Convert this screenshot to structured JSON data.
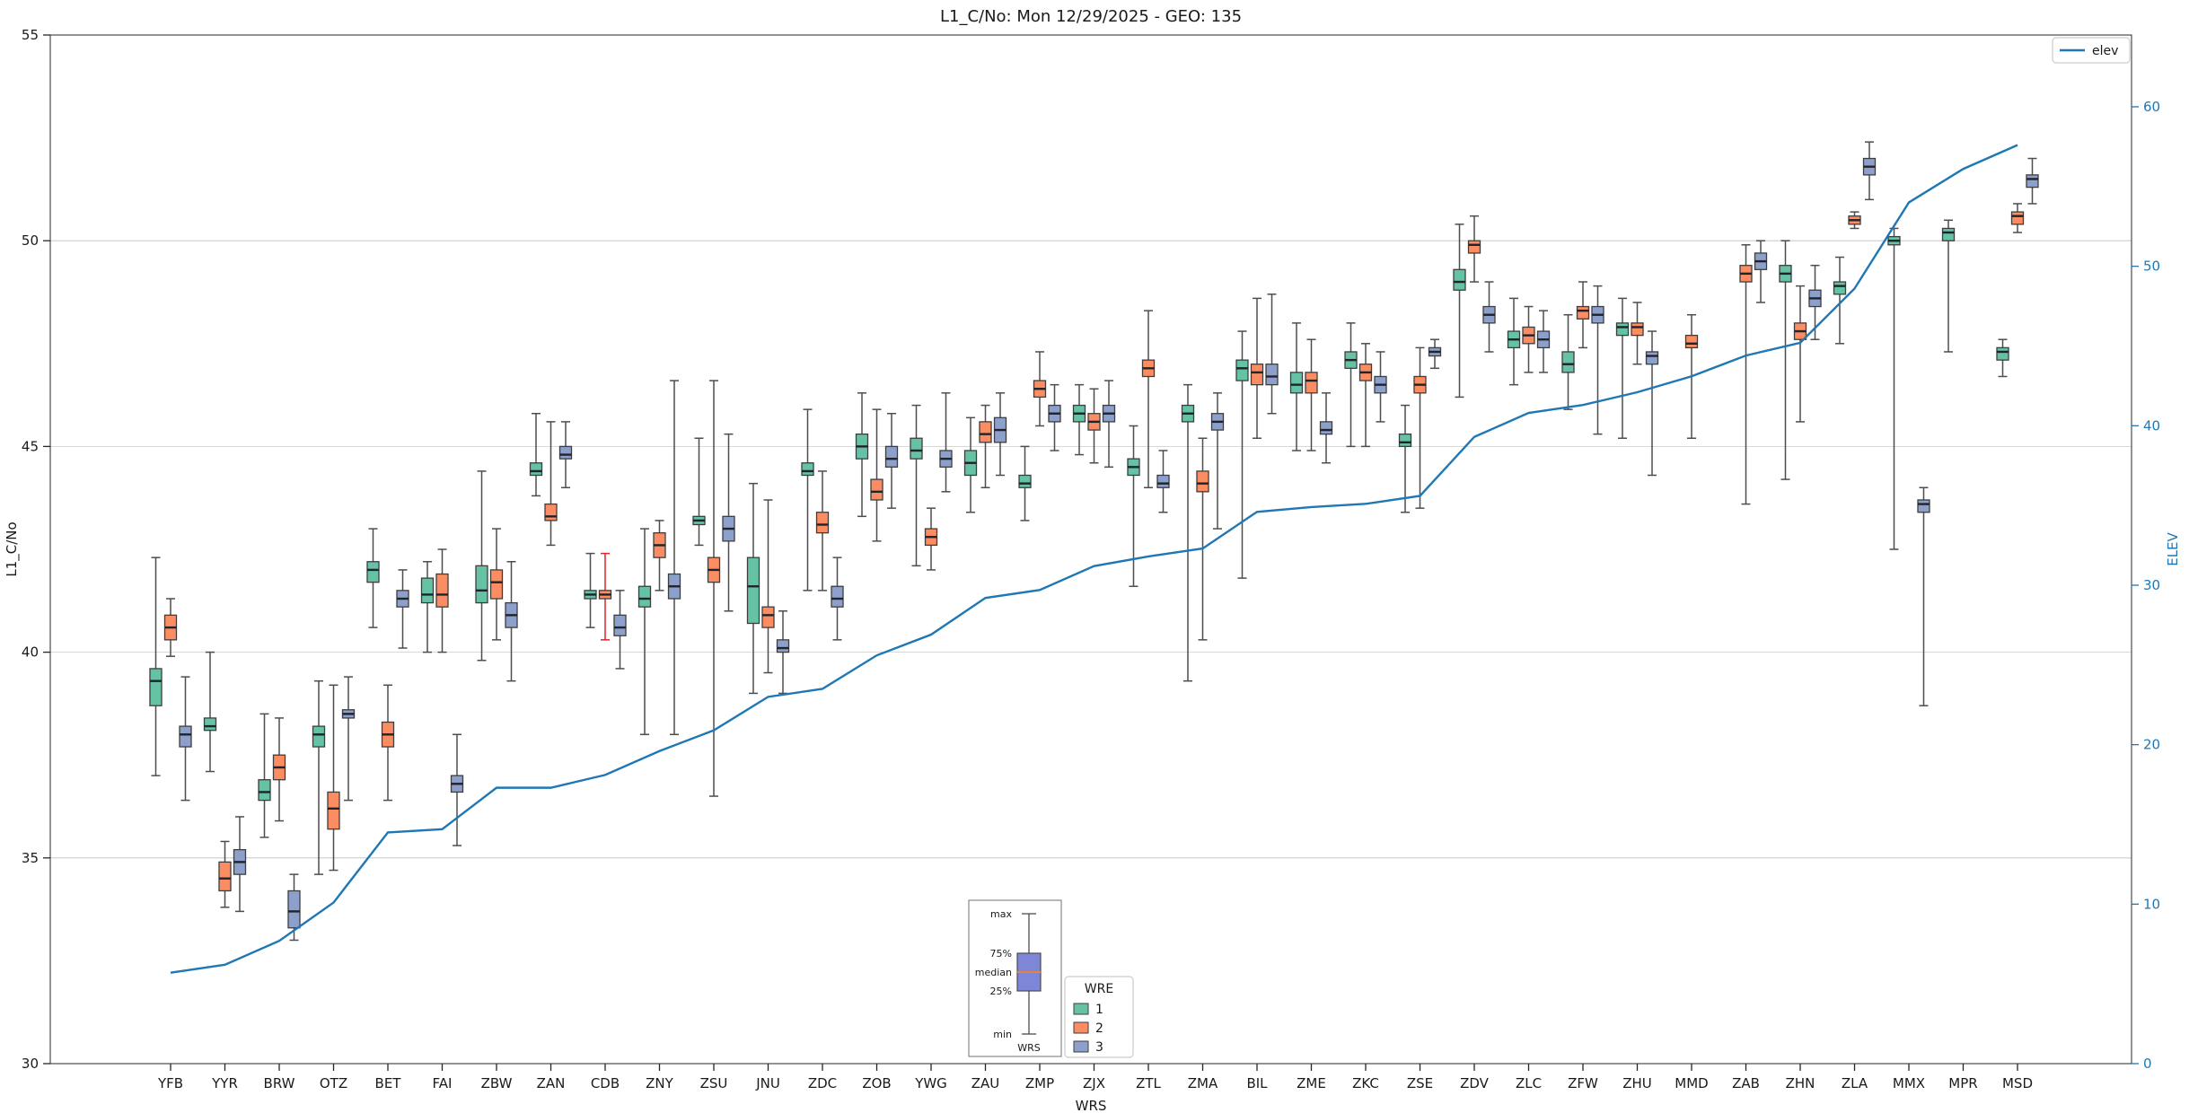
{
  "chart_data": {
    "type": "boxplot",
    "title": "L1_C/No: Mon 12/29/2025 - GEO: 135",
    "xlabel": "WRS",
    "ylabel_left": "L1_C/No",
    "ylabel_right": "ELEV",
    "axis_color_right": "#1f77b4",
    "left_ylim": [
      30,
      55
    ],
    "left_ticks": [
      30,
      35,
      40,
      45,
      50,
      55
    ],
    "right_ylim": [
      0,
      64.5
    ],
    "right_ticks": [
      0,
      10,
      20,
      30,
      40,
      50,
      60
    ],
    "grid": "horizontal",
    "categories": [
      "YFB",
      "YYR",
      "BRW",
      "OTZ",
      "BET",
      "FAI",
      "ZBW",
      "ZAN",
      "CDB",
      "ZNY",
      "ZSU",
      "JNU",
      "ZDC",
      "ZOB",
      "YWG",
      "ZAU",
      "ZMP",
      "ZJX",
      "ZTL",
      "ZMA",
      "BIL",
      "ZME",
      "ZKC",
      "ZSE",
      "ZDV",
      "ZLC",
      "ZFW",
      "ZHU",
      "MMD",
      "ZAB",
      "ZHN",
      "ZLA",
      "MMX",
      "MPR",
      "MSD"
    ],
    "hue_legend": {
      "title": "WRE",
      "entries": [
        {
          "label": "1",
          "color": "#66c2a5"
        },
        {
          "label": "2",
          "color": "#fc8d62"
        },
        {
          "label": "3",
          "color": "#8da0cb"
        }
      ]
    },
    "line_series": {
      "label": "elev",
      "color": "#1f77b4",
      "values": [
        5.7,
        6.2,
        7.7,
        10.1,
        14.5,
        14.7,
        17.3,
        17.3,
        18.1,
        19.6,
        20.9,
        23,
        23.5,
        25.6,
        26.9,
        29.2,
        29.7,
        31.2,
        31.8,
        32.3,
        34.6,
        34.9,
        35.1,
        35.6,
        39.3,
        40.8,
        41.3,
        42.1,
        43.1,
        44.4,
        45.2,
        48.6,
        54,
        56.1,
        57.6
      ]
    },
    "box_stats_order": [
      "min",
      "q1",
      "median",
      "q3",
      "max"
    ],
    "series": [
      {
        "name": "1",
        "color": "#66c2a5",
        "boxes": [
          [
            37.0,
            38.7,
            39.3,
            39.6,
            42.3
          ],
          [
            37.1,
            38.1,
            38.2,
            38.4,
            40.0
          ],
          [
            35.5,
            36.4,
            36.6,
            36.9,
            38.5
          ],
          [
            34.6,
            37.7,
            38.0,
            38.2,
            39.3
          ],
          [
            40.6,
            41.7,
            42.0,
            42.2,
            43.0
          ],
          [
            40.0,
            41.2,
            41.4,
            41.8,
            42.2
          ],
          [
            39.8,
            41.2,
            41.5,
            42.1,
            44.4
          ],
          [
            43.8,
            44.3,
            44.4,
            44.6,
            45.8
          ],
          [
            40.6,
            41.3,
            41.4,
            41.5,
            42.4
          ],
          [
            38.0,
            41.1,
            41.3,
            41.6,
            43.0
          ],
          [
            42.6,
            43.1,
            43.2,
            43.3,
            45.2
          ],
          [
            39.0,
            40.7,
            41.6,
            42.3,
            44.1
          ],
          [
            41.5,
            44.3,
            44.4,
            44.6,
            45.9
          ],
          [
            43.3,
            44.7,
            45.0,
            45.3,
            46.3
          ],
          [
            42.1,
            44.7,
            44.9,
            45.2,
            46.0
          ],
          [
            43.4,
            44.3,
            44.6,
            44.9,
            45.7
          ],
          [
            43.2,
            44.0,
            44.1,
            44.3,
            45.0
          ],
          [
            44.8,
            45.6,
            45.8,
            46.0,
            46.5
          ],
          [
            41.6,
            44.3,
            44.5,
            44.7,
            45.5
          ],
          [
            39.3,
            45.6,
            45.8,
            46.0,
            46.5
          ],
          [
            41.8,
            46.6,
            46.9,
            47.1,
            47.8
          ],
          [
            44.9,
            46.3,
            46.5,
            46.8,
            48.0
          ],
          [
            45.0,
            46.9,
            47.1,
            47.3,
            48.0
          ],
          [
            43.4,
            45.0,
            45.1,
            45.3,
            46.0
          ],
          [
            46.2,
            48.8,
            49.0,
            49.3,
            50.4
          ],
          [
            46.5,
            47.4,
            47.6,
            47.8,
            48.6
          ],
          [
            45.9,
            46.8,
            47.0,
            47.3,
            48.2
          ],
          [
            45.2,
            47.7,
            47.9,
            48.0,
            48.6
          ],
          null,
          null,
          [
            44.2,
            49.0,
            49.2,
            49.4,
            50.0
          ],
          [
            47.5,
            48.7,
            48.9,
            49.0,
            49.6
          ],
          [
            42.5,
            49.9,
            50.0,
            50.1,
            50.3
          ],
          [
            47.3,
            50.0,
            50.2,
            50.3,
            50.5
          ],
          [
            46.7,
            47.1,
            47.3,
            47.4,
            47.6
          ]
        ]
      },
      {
        "name": "2",
        "color": "#fc8d62",
        "boxes": [
          [
            39.9,
            40.3,
            40.6,
            40.9,
            41.3
          ],
          [
            33.8,
            34.2,
            34.5,
            34.9,
            35.4
          ],
          [
            35.9,
            36.9,
            37.2,
            37.5,
            38.4
          ],
          [
            34.7,
            35.7,
            36.2,
            36.6,
            39.2
          ],
          [
            36.4,
            37.7,
            38.0,
            38.3,
            39.2
          ],
          [
            40.0,
            41.1,
            41.4,
            41.9,
            42.5
          ],
          [
            40.3,
            41.3,
            41.7,
            42.0,
            43.0
          ],
          [
            42.6,
            43.2,
            43.3,
            43.6,
            45.6
          ],
          [
            40.3,
            41.3,
            41.4,
            41.5,
            42.4
          ],
          [
            41.5,
            42.3,
            42.6,
            42.9,
            43.2
          ],
          [
            36.5,
            41.7,
            42.0,
            42.3,
            46.6
          ],
          [
            39.5,
            40.6,
            40.9,
            41.1,
            43.7
          ],
          [
            41.5,
            42.9,
            43.1,
            43.4,
            44.4
          ],
          [
            42.7,
            43.7,
            43.9,
            44.2,
            45.9
          ],
          [
            42.0,
            42.6,
            42.8,
            43.0,
            43.5
          ],
          [
            44.0,
            45.1,
            45.3,
            45.6,
            46.0
          ],
          [
            45.5,
            46.2,
            46.4,
            46.6,
            47.3
          ],
          [
            44.6,
            45.4,
            45.6,
            45.8,
            46.4
          ],
          [
            44.0,
            46.7,
            46.9,
            47.1,
            48.3
          ],
          [
            40.3,
            43.9,
            44.1,
            44.4,
            45.2
          ],
          [
            45.2,
            46.5,
            46.8,
            47.0,
            48.6
          ],
          [
            44.9,
            46.3,
            46.6,
            46.8,
            47.6
          ],
          [
            45.0,
            46.6,
            46.8,
            47.0,
            47.5
          ],
          [
            43.5,
            46.3,
            46.5,
            46.7,
            47.4
          ],
          [
            49.0,
            49.7,
            49.9,
            50.0,
            50.6
          ],
          [
            46.8,
            47.5,
            47.7,
            47.9,
            48.4
          ],
          [
            47.4,
            48.1,
            48.3,
            48.4,
            49.0
          ],
          [
            47.0,
            47.7,
            47.9,
            48.0,
            48.5
          ],
          [
            45.2,
            47.4,
            47.5,
            47.7,
            48.2
          ],
          [
            43.6,
            49.0,
            49.2,
            49.4,
            49.9
          ],
          [
            45.6,
            47.6,
            47.8,
            48.0,
            48.9
          ],
          [
            50.3,
            50.4,
            50.5,
            50.6,
            50.7
          ],
          null,
          null,
          [
            50.2,
            50.4,
            50.6,
            50.7,
            50.9
          ]
        ]
      },
      {
        "name": "3",
        "color": "#8da0cb",
        "boxes": [
          [
            36.4,
            37.7,
            38.0,
            38.2,
            39.4
          ],
          [
            33.7,
            34.6,
            34.9,
            35.2,
            36.0
          ],
          [
            33.0,
            33.3,
            33.7,
            34.2,
            34.6
          ],
          [
            36.4,
            38.4,
            38.5,
            38.6,
            39.4
          ],
          [
            40.1,
            41.1,
            41.3,
            41.5,
            42.0
          ],
          [
            35.3,
            36.6,
            36.8,
            37.0,
            38.0
          ],
          [
            39.3,
            40.6,
            40.9,
            41.2,
            42.2
          ],
          [
            44.0,
            44.7,
            44.8,
            45.0,
            45.6
          ],
          [
            39.6,
            40.4,
            40.6,
            40.9,
            41.5
          ],
          [
            38.0,
            41.3,
            41.6,
            41.9,
            46.6
          ],
          [
            41.0,
            42.7,
            43.0,
            43.3,
            45.3
          ],
          [
            39.0,
            40.0,
            40.1,
            40.3,
            41.0
          ],
          [
            40.3,
            41.1,
            41.3,
            41.6,
            42.3
          ],
          [
            43.5,
            44.5,
            44.7,
            45.0,
            45.8
          ],
          [
            43.9,
            44.5,
            44.7,
            44.9,
            46.3
          ],
          [
            44.3,
            45.1,
            45.4,
            45.7,
            46.3
          ],
          [
            44.9,
            45.6,
            45.8,
            46.0,
            46.5
          ],
          [
            44.5,
            45.6,
            45.8,
            46.0,
            46.6
          ],
          [
            43.4,
            44.0,
            44.1,
            44.3,
            44.9
          ],
          [
            43.0,
            45.4,
            45.6,
            45.8,
            46.3
          ],
          [
            45.8,
            46.5,
            46.7,
            47.0,
            48.7
          ],
          [
            44.6,
            45.3,
            45.4,
            45.6,
            46.3
          ],
          [
            45.6,
            46.3,
            46.5,
            46.7,
            47.3
          ],
          [
            46.9,
            47.2,
            47.3,
            47.4,
            47.6
          ],
          [
            47.3,
            48.0,
            48.2,
            48.4,
            49.0
          ],
          [
            46.8,
            47.4,
            47.6,
            47.8,
            48.3
          ],
          [
            45.3,
            48.0,
            48.2,
            48.4,
            48.9
          ],
          [
            44.3,
            47.0,
            47.2,
            47.3,
            47.8
          ],
          null,
          [
            48.5,
            49.3,
            49.5,
            49.7,
            50.0
          ],
          [
            47.6,
            48.4,
            48.6,
            48.8,
            49.4
          ],
          [
            51.0,
            51.6,
            51.8,
            52.0,
            52.4
          ],
          [
            38.7,
            43.4,
            43.6,
            43.7,
            44.0
          ],
          null,
          [
            50.9,
            51.3,
            51.5,
            51.6,
            52.0
          ]
        ]
      }
    ],
    "special": {
      "red_whisker": {
        "category": "CDB",
        "series": "2",
        "color": "#d62728"
      }
    },
    "inset_legend": {
      "labels": [
        "max",
        "75%",
        "median",
        "25%",
        "min"
      ],
      "xlabel": "WRS",
      "box_color": "#7e86d8",
      "median_color": "#e8833e"
    }
  }
}
